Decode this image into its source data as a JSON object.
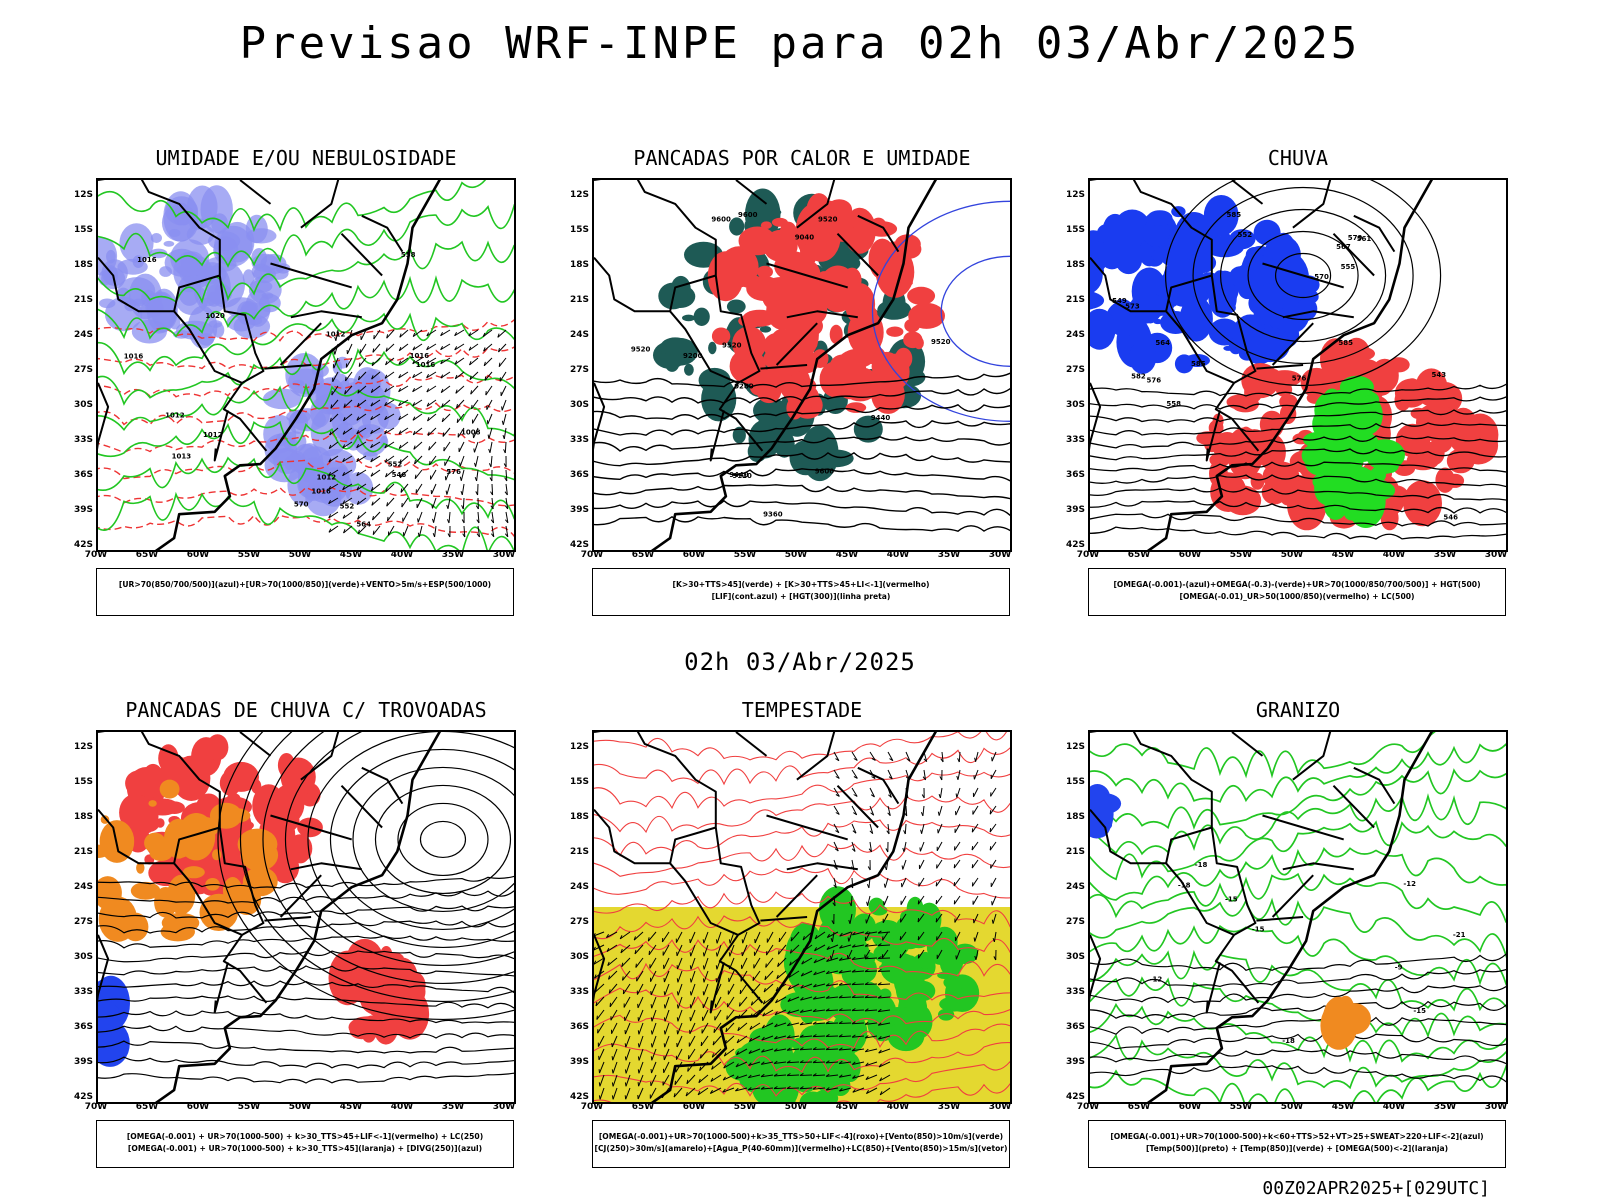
{
  "title": "Previsao WRF-INPE  para 02h 03/Abr/2025",
  "mid_date": "02h 03/Abr/2025",
  "run_stamp": "00Z02APR2025+[029UTC]",
  "lat_labels": [
    "12S",
    "15S",
    "18S",
    "21S",
    "24S",
    "27S",
    "30S",
    "33S",
    "36S",
    "39S",
    "42S"
  ],
  "lon_labels": [
    "70W",
    "65W",
    "60W",
    "55W",
    "50W",
    "45W",
    "40W",
    "35W",
    "30W"
  ],
  "panels": [
    {
      "title": "UMIDADE E/OU NEBULOSIDADE",
      "legend": [
        "[UR>70(850/700/500)](azul)+[UR>70(1000/850)](verde)+VENTO>5m/s+ESP(500/1000)"
      ],
      "contour_labels": [
        "1012",
        "1012",
        "1016",
        "1016",
        "1013",
        "1016",
        "1012",
        "1016",
        "1020",
        "1012",
        "576",
        "570",
        "564",
        "558",
        "552",
        "552",
        "546",
        "1008",
        "1016"
      ],
      "colors": {
        "blue_fill": "#8a8ff0",
        "green_line": "#22c622",
        "red_dash": "#ee3333"
      }
    },
    {
      "title": "PANCADAS POR CALOR E UMIDADE",
      "legend": [
        "[K>30+TTS>45](verde) + [K>30+TTS>45+LI<-1](vermelho)",
        "[LIF](cont.azul) + [HGT(300)](linha preta)"
      ],
      "contour_labels": [
        "9600",
        "9520",
        "9520",
        "9600",
        "9520",
        "9440",
        "9360",
        "9280",
        "9200",
        "9120",
        "9040",
        "9440",
        "9600",
        "9520"
      ],
      "colors": {
        "dark_fill": "#1e5a55",
        "red_fill": "#f04040",
        "blue_line": "#3344dd"
      }
    },
    {
      "title": "CHUVA",
      "legend": [
        "[OMEGA(-0.001)-(azul)+OMEGA(-0.3)-(verde)+UR>70(1000/850/700/500)] + HGT(500)",
        "[OMEGA(-0.01)_UR>50(1000/850)(vermelho) + LC(500)"
      ],
      "contour_labels": [
        "585",
        "585",
        "582",
        "579",
        "576",
        "573",
        "570",
        "567",
        "564",
        "561",
        "558",
        "555",
        "552",
        "549",
        "546",
        "543",
        "576",
        "585"
      ],
      "colors": {
        "blue_fill": "#1a3cf0",
        "green_fill": "#22dd22",
        "red_fill": "#f04040"
      }
    },
    {
      "title": "PANCADAS DE CHUVA C/ TROVOADAS",
      "legend": [
        "[OMEGA(-0.001) + UR>70(1000-500) + k>30_TTS>45+LIF<-1](vermelho) + LC(250)",
        "[OMEGA(-0.001) + UR>70(1000-500) + k>30_TTS>45](laranja) + [DIVG(250)](azul)"
      ],
      "contour_labels": [],
      "colors": {
        "red_fill": "#f04040",
        "orange_fill": "#f08a20",
        "blue_fill": "#2244ee"
      }
    },
    {
      "title": "TEMPESTADE",
      "legend": [
        "[OMEGA(-0.001)+UR>70(1000-500)+k>35_TTS>50+LIF<-4](roxo)+[Vento(850)>10m/s](verde)",
        "[CJ(250)>30m/s](amarelo)+[Agua_P(40-60mm)](vermelho)+LC(850)+[Vento(850)>15m/s](vetor)"
      ],
      "contour_labels": [],
      "colors": {
        "yellow_fill": "#e4d830",
        "green_fill": "#22c622",
        "red_line": "#f04040"
      }
    },
    {
      "title": "GRANIZO",
      "legend": [
        "[OMEGA(-0.001)+UR>70(1000-500)+k<60+TTS>52+VT>25+SWEAT>220+LIF<-2](azul)",
        "[Temp(500)](preto) + [Temp(850)](verde) + [OMEGA(500)<-2](laranja)"
      ],
      "contour_labels": [
        "-12",
        "-12",
        "-15",
        "-15",
        "-18",
        "-18",
        "-21",
        "-9",
        "-18",
        "-15"
      ],
      "colors": {
        "green_line": "#22c622",
        "orange_fill": "#f08a20",
        "blue_fill": "#2244ee"
      }
    }
  ]
}
